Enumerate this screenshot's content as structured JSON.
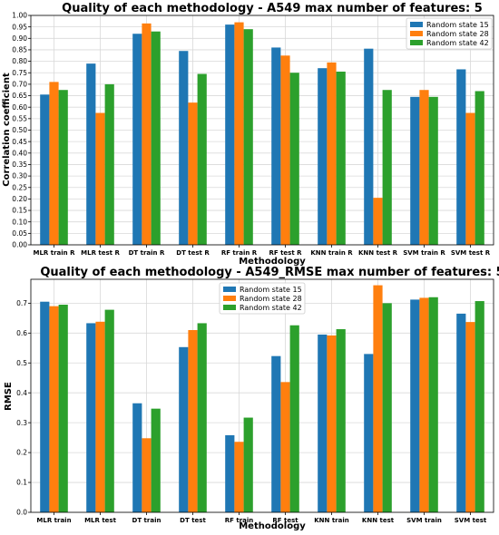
{
  "chart_data": [
    {
      "type": "bar",
      "title": "Quality of each methodology - A549 max number of features: 5",
      "xlabel": "Methodology",
      "ylabel": "Correlation coefficient",
      "ylim": [
        0,
        1.0
      ],
      "yticks": [
        "0.00",
        "0.05",
        "0.10",
        "0.15",
        "0.20",
        "0.25",
        "0.30",
        "0.35",
        "0.40",
        "0.45",
        "0.50",
        "0.55",
        "0.60",
        "0.65",
        "0.70",
        "0.75",
        "0.80",
        "0.85",
        "0.90",
        "0.95",
        "1.00"
      ],
      "ytick_values": [
        0,
        0.05,
        0.1,
        0.15,
        0.2,
        0.25,
        0.3,
        0.35,
        0.4,
        0.45,
        0.5,
        0.55,
        0.6,
        0.65,
        0.7,
        0.75,
        0.8,
        0.85,
        0.9,
        0.95,
        1.0
      ],
      "grid": true,
      "legend_position": "top-right",
      "categories": [
        "MLR train R",
        "MLR test R",
        "DT train R",
        "DT test R",
        "RF train R",
        "RF test R",
        "KNN train R",
        "KNN test R",
        "SVM train R",
        "SVM test R"
      ],
      "series": [
        {
          "name": "Random state 15",
          "color": "#1f77b4",
          "values": [
            0.655,
            0.79,
            0.92,
            0.845,
            0.96,
            0.86,
            0.77,
            0.855,
            0.645,
            0.765
          ]
        },
        {
          "name": "Random state 28",
          "color": "#ff7f0e",
          "values": [
            0.71,
            0.575,
            0.965,
            0.62,
            0.97,
            0.825,
            0.795,
            0.205,
            0.675,
            0.575
          ]
        },
        {
          "name": "Random state 42",
          "color": "#2ca02c",
          "values": [
            0.675,
            0.7,
            0.93,
            0.745,
            0.94,
            0.75,
            0.755,
            0.675,
            0.645,
            0.67
          ]
        }
      ]
    },
    {
      "type": "bar",
      "title": "Quality of each methodology - A549_RMSE max number of features: 5",
      "xlabel": "Methodology",
      "ylabel": "RMSE",
      "ylim": [
        0,
        0.78
      ],
      "yticks": [
        "0.0",
        "0.1",
        "0.2",
        "0.3",
        "0.4",
        "0.5",
        "0.6",
        "0.7"
      ],
      "ytick_values": [
        0,
        0.1,
        0.2,
        0.3,
        0.4,
        0.5,
        0.6,
        0.7
      ],
      "grid": true,
      "legend_position": "top-center",
      "categories": [
        "MLR train",
        "MLR test",
        "DT train",
        "DT test",
        "RF train",
        "RF test",
        "KNN train",
        "KNN test",
        "SVM train",
        "SVM test"
      ],
      "series": [
        {
          "name": "Random state 15",
          "color": "#1f77b4",
          "values": [
            0.705,
            0.633,
            0.365,
            0.553,
            0.258,
            0.523,
            0.595,
            0.53,
            0.712,
            0.665
          ]
        },
        {
          "name": "Random state 28",
          "color": "#ff7f0e",
          "values": [
            0.69,
            0.638,
            0.248,
            0.61,
            0.236,
            0.436,
            0.592,
            0.76,
            0.718,
            0.637
          ]
        },
        {
          "name": "Random state 42",
          "color": "#2ca02c",
          "values": [
            0.695,
            0.678,
            0.347,
            0.633,
            0.317,
            0.626,
            0.613,
            0.7,
            0.72,
            0.707
          ]
        }
      ]
    }
  ]
}
